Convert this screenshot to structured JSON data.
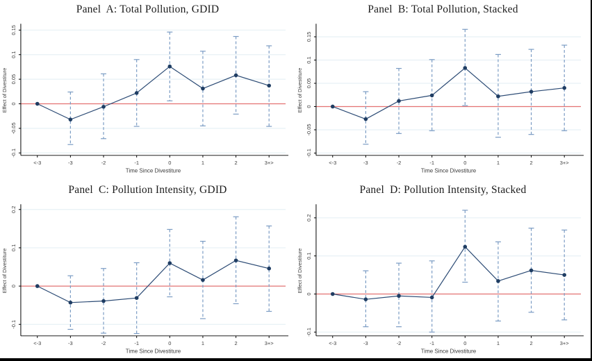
{
  "figure": {
    "background": "#ffffff",
    "edge_border": "#000000"
  },
  "colors": {
    "marker": "#1f3d63",
    "line": "#2b4a74",
    "ci": "#7b9cc4",
    "zero_line": "#e57373",
    "grid": "#e7f0f5",
    "axis": "#000000",
    "tick_text": "#3d3d3d",
    "title_text": "#1c1c1c"
  },
  "chart_data": [
    {
      "type": "line",
      "title": "Panel  A: Total Pollution, GDID",
      "xlabel": "Time Since Divestiture",
      "ylabel": "Effect of Divestiture",
      "legend": null,
      "grid": true,
      "categories": [
        "<-3",
        "-3",
        "-2",
        "-1",
        "0",
        "1",
        "2",
        "3+>"
      ],
      "estimates": [
        0,
        -0.032,
        -0.006,
        0.022,
        0.076,
        0.031,
        0.058,
        0.037
      ],
      "ci_low": [
        null,
        -0.083,
        -0.071,
        -0.046,
        0.006,
        -0.045,
        -0.021,
        -0.046
      ],
      "ci_high": [
        null,
        0.024,
        0.061,
        0.09,
        0.146,
        0.107,
        0.137,
        0.118
      ],
      "yticks": [
        -0.1,
        -0.05,
        0,
        0.05,
        0.1,
        0.15
      ],
      "ytick_labels": [
        "-0.1",
        "-0.05",
        "0",
        "0.05",
        "0.1",
        "0.15"
      ],
      "ylim": [
        -0.105,
        0.16
      ],
      "zero_line": 0
    },
    {
      "type": "line",
      "title": "Panel  B: Total Pollution, Stacked",
      "xlabel": "Time Since Divestiture",
      "ylabel": "Effect of Divestiture",
      "legend": null,
      "grid": true,
      "categories": [
        "<-3",
        "-3",
        "-2",
        "-1",
        "0",
        "1",
        "2",
        "3+>"
      ],
      "estimates": [
        0,
        -0.027,
        0.012,
        0.024,
        0.083,
        0.022,
        0.032,
        0.04
      ],
      "ci_low": [
        null,
        -0.081,
        -0.058,
        -0.052,
        0.002,
        -0.066,
        -0.06,
        -0.052
      ],
      "ci_high": [
        null,
        0.032,
        0.082,
        0.101,
        0.166,
        0.112,
        0.123,
        0.132
      ],
      "yticks": [
        -0.1,
        -0.05,
        0,
        0.05,
        0.1,
        0.15
      ],
      "ytick_labels": [
        "-0.1",
        "-0.05",
        "0",
        "0.05",
        "0.1",
        "0.15"
      ],
      "ylim": [
        -0.105,
        0.175
      ],
      "zero_line": 0
    },
    {
      "type": "line",
      "title": "Panel  C: Pollution Intensity, GDID",
      "xlabel": "Time Since Divestiture",
      "ylabel": "Effect of Divestiture",
      "legend": null,
      "grid": true,
      "categories": [
        "<-3",
        "-3",
        "-2",
        "-1",
        "0",
        "1",
        "2",
        "3+>"
      ],
      "estimates": [
        0,
        -0.043,
        -0.039,
        -0.031,
        0.06,
        0.016,
        0.067,
        0.046
      ],
      "ci_low": [
        null,
        -0.113,
        -0.123,
        -0.124,
        -0.028,
        -0.085,
        -0.046,
        -0.066
      ],
      "ci_high": [
        null,
        0.027,
        0.046,
        0.061,
        0.148,
        0.117,
        0.181,
        0.157
      ],
      "yticks": [
        -0.1,
        0,
        0.1,
        0.2
      ],
      "ytick_labels": [
        "-0.1",
        "0",
        "0.1",
        "0.2"
      ],
      "ylim": [
        -0.13,
        0.21
      ],
      "zero_line": 0
    },
    {
      "type": "line",
      "title": "Panel  D: Pollution Intensity, Stacked",
      "xlabel": "Time Since Divestiture",
      "ylabel": "Effect of Divestiture",
      "legend": null,
      "grid": true,
      "categories": [
        "<-3",
        "-3",
        "-2",
        "-1",
        "0",
        "1",
        "2",
        "3+>"
      ],
      "estimates": [
        0,
        -0.014,
        -0.005,
        -0.009,
        0.124,
        0.034,
        0.062,
        0.05
      ],
      "ci_low": [
        null,
        -0.086,
        -0.086,
        -0.1,
        0.031,
        -0.071,
        -0.048,
        -0.068
      ],
      "ci_high": [
        null,
        0.061,
        0.081,
        0.087,
        0.22,
        0.137,
        0.173,
        0.168
      ],
      "yticks": [
        -0.1,
        0,
        0.1,
        0.2
      ],
      "ytick_labels": [
        "-0.1",
        "0",
        "0.1",
        "0.2"
      ],
      "ylim": [
        -0.11,
        0.232
      ],
      "zero_line": 0
    }
  ]
}
